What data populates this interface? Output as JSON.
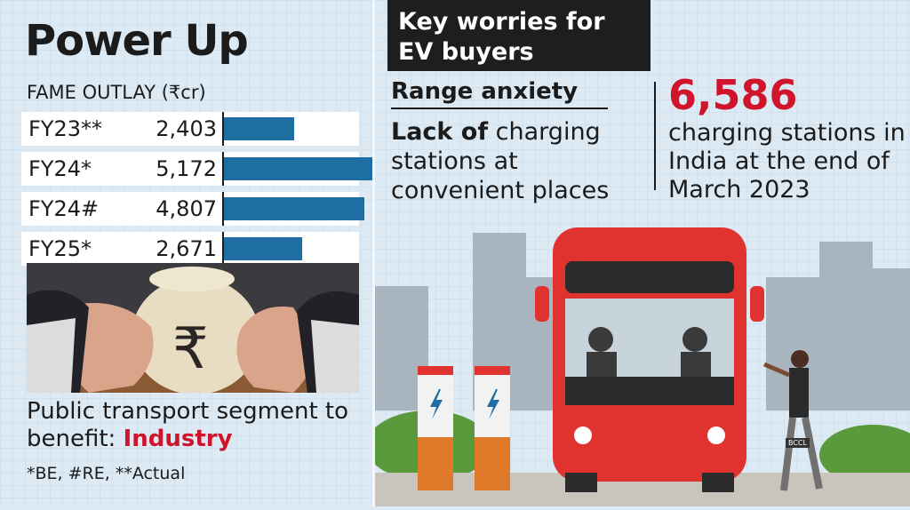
{
  "left": {
    "title": "Power Up",
    "subtitle": "FAME OUTLAY (₹cr)",
    "note_main": "Public transport segment to benefit: ",
    "note_source": "Industry",
    "footnote": "*BE, #RE, **Actual"
  },
  "chart_data": {
    "type": "bar",
    "categories": [
      "FY23**",
      "FY24*",
      "FY24#",
      "FY25*"
    ],
    "values": [
      2403,
      5172,
      4807,
      2671
    ],
    "value_labels": [
      "2,403",
      "5,172",
      "4,807",
      "2,671"
    ],
    "title": "FAME OUTLAY (₹cr)",
    "xlim": [
      0,
      5172
    ],
    "bar_color": "#1f6ea3"
  },
  "right": {
    "header": "Key worries for EV buyers",
    "worry1": "Range anxiety",
    "worry2_bold": "Lack of",
    "worry2_rest": " charging stations at convenient places",
    "stat_number": "6,586",
    "stat_text": "charging stations in India at the end of March 2023",
    "credit": "BCCL"
  },
  "colors": {
    "accent_red": "#d0142c",
    "bar_blue": "#1f6ea3",
    "bus_red": "#e0322f"
  },
  "icons": [
    "rupee-icon",
    "lightning-icon"
  ]
}
